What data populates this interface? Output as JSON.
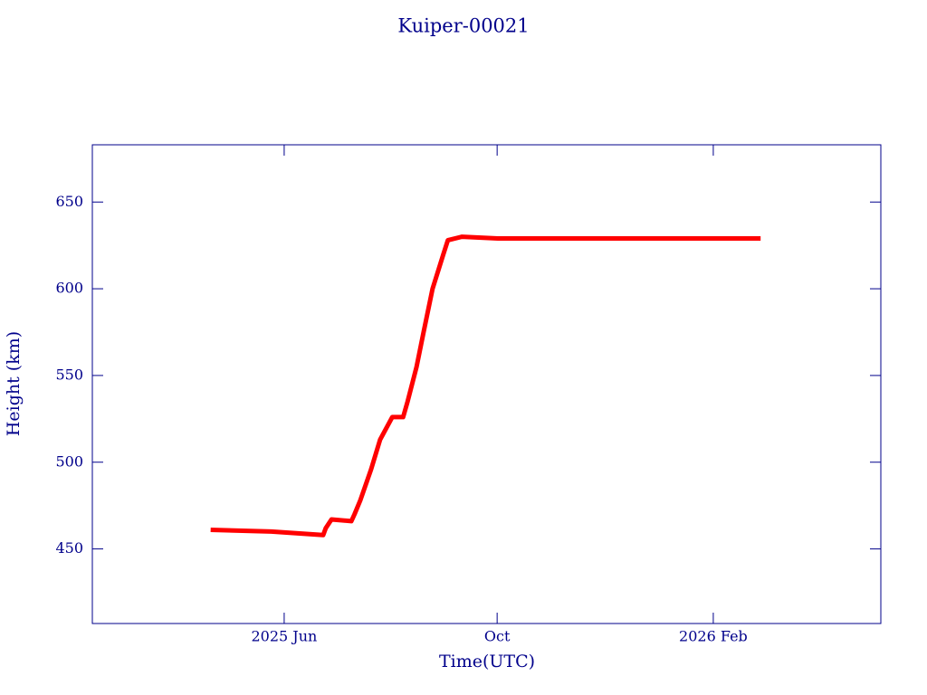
{
  "chart_data": {
    "type": "line",
    "title": "Kuiper-00021",
    "x_label": "Time(UTC)",
    "y_label": "Height (km)",
    "x": [
      2025.299,
      2025.394,
      2025.475,
      2025.479,
      2025.488,
      2025.519,
      2025.524,
      2025.533,
      2025.55,
      2025.564,
      2025.583,
      2025.6,
      2025.607,
      2025.621,
      2025.632,
      2025.646,
      2025.663,
      2025.67,
      2025.692,
      2025.748,
      2025.89,
      2026.032,
      2026.159
    ],
    "series": [
      {
        "color": "#ff0000",
        "values": [
          461,
          460,
          458,
          462,
          467,
          466,
          470,
          478,
          496,
          513,
          526,
          526,
          535,
          555,
          575,
          600,
          620,
          628,
          630,
          629,
          629,
          629,
          629
        ]
      }
    ],
    "xlim": [
      2025.114,
      2026.347
    ],
    "xticks": [
      {
        "value": 2025.414,
        "label": "2025 Jun"
      },
      {
        "value": 2025.747,
        "label": "Oct"
      },
      {
        "value": 2026.085,
        "label": "2026 Feb"
      }
    ],
    "ylim": [
      407,
      683
    ],
    "yticks": [
      450,
      500,
      550,
      600,
      650
    ],
    "axis_color": "#00008b"
  }
}
